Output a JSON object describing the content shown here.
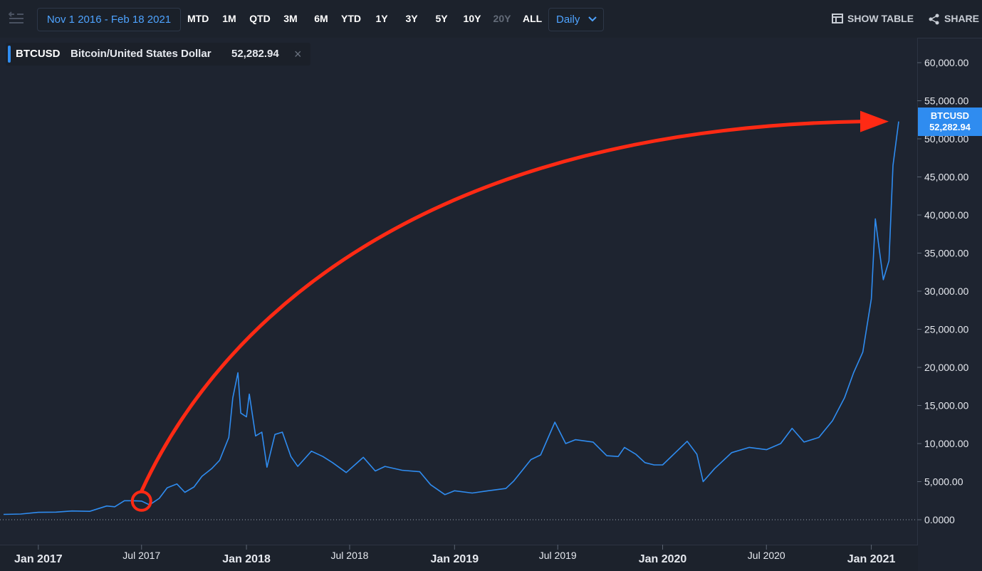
{
  "toolbar": {
    "date_range": "Nov 1 2016 - Feb 18 2021",
    "ranges": [
      {
        "label": "MTD",
        "enabled": true
      },
      {
        "label": "1M",
        "enabled": true
      },
      {
        "label": "QTD",
        "enabled": true
      },
      {
        "label": "3M",
        "enabled": true
      },
      {
        "label": "6M",
        "enabled": true
      },
      {
        "label": "YTD",
        "enabled": true
      },
      {
        "label": "1Y",
        "enabled": true
      },
      {
        "label": "3Y",
        "enabled": true
      },
      {
        "label": "5Y",
        "enabled": true
      },
      {
        "label": "10Y",
        "enabled": true
      },
      {
        "label": "20Y",
        "enabled": false
      },
      {
        "label": "ALL",
        "enabled": true
      }
    ],
    "interval": "Daily",
    "show_table": "SHOW TABLE",
    "share": "SHARE",
    "icons": {
      "back": "collapse-left-icon",
      "interval": "chevron-down-icon",
      "table": "table-icon",
      "share": "share-icon"
    }
  },
  "legend": {
    "symbol": "BTCUSD",
    "name": "Bitcoin/United States Dollar",
    "value": "52,282.94",
    "close": "×"
  },
  "price_tag": {
    "symbol": "BTCUSD",
    "value": "52,282.94"
  },
  "colors": {
    "line": "#2f8cf0",
    "arrow": "#ff2a14",
    "background": "#1e2430",
    "axis_text": "#e6e9ef"
  },
  "chart_data": {
    "type": "line",
    "series": [
      {
        "name": "BTCUSD",
        "x": [
          "2016-11-01",
          "2016-12-01",
          "2017-01-01",
          "2017-02-01",
          "2017-03-01",
          "2017-04-01",
          "2017-05-01",
          "2017-05-15",
          "2017-06-01",
          "2017-06-15",
          "2017-07-01",
          "2017-07-15",
          "2017-08-01",
          "2017-08-15",
          "2017-09-01",
          "2017-09-15",
          "2017-10-01",
          "2017-10-15",
          "2017-11-01",
          "2017-11-15",
          "2017-12-01",
          "2017-12-08",
          "2017-12-17",
          "2017-12-22",
          "2018-01-01",
          "2018-01-06",
          "2018-01-17",
          "2018-01-28",
          "2018-02-06",
          "2018-02-20",
          "2018-03-05",
          "2018-03-20",
          "2018-04-01",
          "2018-04-25",
          "2018-05-15",
          "2018-06-01",
          "2018-06-25",
          "2018-07-25",
          "2018-08-15",
          "2018-09-01",
          "2018-10-01",
          "2018-11-01",
          "2018-11-20",
          "2018-12-15",
          "2019-01-01",
          "2019-02-01",
          "2019-03-01",
          "2019-04-01",
          "2019-04-15",
          "2019-05-15",
          "2019-06-01",
          "2019-06-26",
          "2019-07-15",
          "2019-08-01",
          "2019-09-01",
          "2019-09-25",
          "2019-10-15",
          "2019-10-26",
          "2019-11-15",
          "2019-12-01",
          "2019-12-17",
          "2020-01-01",
          "2020-02-13",
          "2020-03-01",
          "2020-03-12",
          "2020-04-01",
          "2020-05-01",
          "2020-06-01",
          "2020-07-01",
          "2020-07-26",
          "2020-08-15",
          "2020-09-05",
          "2020-10-01",
          "2020-10-25",
          "2020-11-15",
          "2020-12-01",
          "2020-12-17",
          "2021-01-01",
          "2021-01-08",
          "2021-01-14",
          "2021-01-22",
          "2021-02-01",
          "2021-02-08",
          "2021-02-18"
        ],
        "values": [
          700,
          750,
          970,
          1000,
          1150,
          1100,
          1800,
          1700,
          2500,
          2500,
          2450,
          1950,
          2800,
          4200,
          4700,
          3600,
          4300,
          5700,
          6700,
          7800,
          10800,
          16000,
          19300,
          14000,
          13500,
          16500,
          11000,
          11500,
          6900,
          11200,
          11500,
          8300,
          7000,
          9000,
          8300,
          7500,
          6200,
          8200,
          6400,
          7000,
          6500,
          6300,
          4600,
          3300,
          3800,
          3500,
          3800,
          4100,
          5100,
          7900,
          8500,
          12800,
          10000,
          10500,
          10200,
          8400,
          8300,
          9500,
          8600,
          7500,
          7200,
          7200,
          10300,
          8600,
          5000,
          6700,
          8800,
          9500,
          9200,
          10000,
          12000,
          10200,
          10800,
          13000,
          16000,
          19300,
          22000,
          29000,
          39500,
          36000,
          31500,
          34000,
          46500,
          52282.94
        ]
      }
    ],
    "x_tick_labels": [
      "Jan 2017",
      "Jul 2017",
      "Jan 2018",
      "Jul 2018",
      "Jan 2019",
      "Jul 2019",
      "Jan 2020",
      "Jul 2020",
      "Jan 2021"
    ],
    "y_tick_labels": [
      "0.0000",
      "5,000.00",
      "10,000.00",
      "15,000.00",
      "20,000.00",
      "25,000.00",
      "30,000.00",
      "35,000.00",
      "40,000.00",
      "45,000.00",
      "50,000.00",
      "55,000.00",
      "60,000.00"
    ],
    "ylim": [
      0,
      60000
    ],
    "xlim": [
      "2016-11-01",
      "2021-02-18"
    ],
    "annotations": [
      {
        "type": "circle",
        "x": "2017-07-01",
        "y": 2450,
        "color": "#ff2a14"
      },
      {
        "type": "arrow",
        "from_x": "2017-07-01",
        "from_y": 2450,
        "to_x": "2021-02-18",
        "to_y": 52282.94,
        "color": "#ff2a14"
      }
    ],
    "zero_line": "dotted",
    "grid": false
  }
}
